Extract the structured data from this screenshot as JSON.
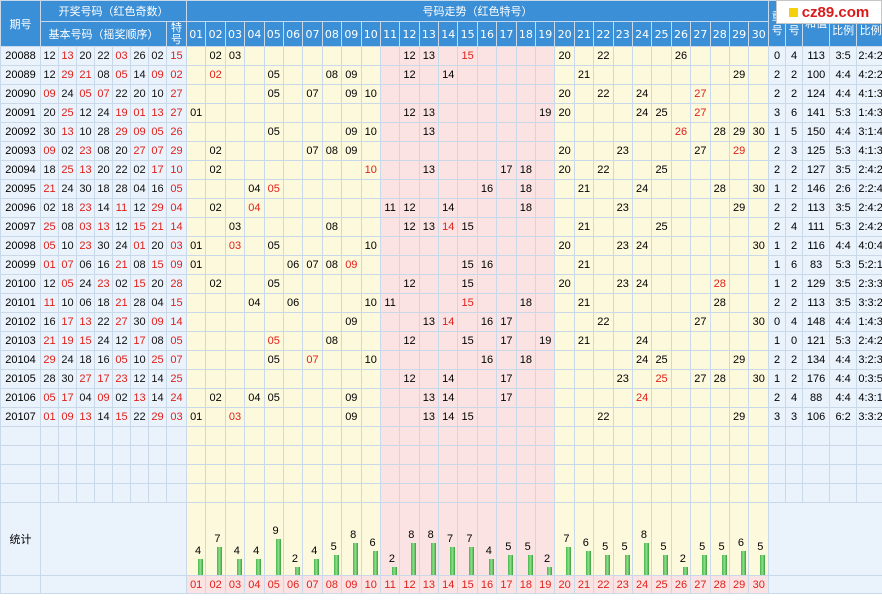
{
  "header": {
    "col_period": "期号",
    "group_draw": "开奖号码（红色奇数）",
    "basic_label": "基本号码（摇奖顺序）",
    "special_label": "特号",
    "group_trend": "号码走势（红色特号）",
    "col_repeat": "重号",
    "col_consecutive": "连号",
    "col_sum": "和值",
    "col_odd_even": "奇偶比例",
    "col_zone": "三区比例",
    "trend_numbers": [
      "01",
      "02",
      "03",
      "04",
      "05",
      "06",
      "07",
      "08",
      "09",
      "10",
      "11",
      "12",
      "13",
      "14",
      "15",
      "16",
      "17",
      "18",
      "19",
      "20",
      "21",
      "22",
      "23",
      "24",
      "25",
      "26",
      "27",
      "28",
      "29",
      "30"
    ]
  },
  "logo": {
    "text": "cz89.com"
  },
  "rows": [
    {
      "period": "20088",
      "nums": [
        "12",
        "13",
        "20",
        "22",
        "03",
        "26",
        "02"
      ],
      "special": "15",
      "trend": {
        "2": "02",
        "3": "03",
        "12": "12",
        "13": "13",
        "15": "15",
        "20": "20",
        "22": "22",
        "26": "26"
      },
      "repeat": "0",
      "consec": "4",
      "sum": "113",
      "oe": "3:5",
      "zone": "2:4:2"
    },
    {
      "period": "20089",
      "nums": [
        "12",
        "29",
        "21",
        "08",
        "05",
        "14",
        "09"
      ],
      "special": "02",
      "trend": {
        "2": "02",
        "5": "05",
        "8": "08",
        "9": "09",
        "12": "12",
        "14": "14",
        "21": "21",
        "29": "29"
      },
      "repeat": "2",
      "consec": "2",
      "sum": "100",
      "oe": "4:4",
      "zone": "4:2:2"
    },
    {
      "period": "20090",
      "nums": [
        "09",
        "24",
        "05",
        "07",
        "22",
        "20",
        "10"
      ],
      "special": "27",
      "trend": {
        "5": "05",
        "7": "07",
        "9": "09",
        "10": "10",
        "20": "20",
        "22": "22",
        "24": "24",
        "27": "27"
      },
      "repeat": "2",
      "consec": "2",
      "sum": "124",
      "oe": "4:4",
      "zone": "4:1:3"
    },
    {
      "period": "20091",
      "nums": [
        "20",
        "25",
        "12",
        "24",
        "19",
        "01",
        "13"
      ],
      "special": "27",
      "trend": {
        "1": "01",
        "12": "12",
        "13": "13",
        "19": "19",
        "20": "20",
        "24": "24",
        "25": "25",
        "27": "27"
      },
      "repeat": "3",
      "consec": "6",
      "sum": "141",
      "oe": "5:3",
      "zone": "1:4:3"
    },
    {
      "period": "20092",
      "nums": [
        "30",
        "13",
        "10",
        "28",
        "29",
        "09",
        "05"
      ],
      "special": "26",
      "trend": {
        "5": "05",
        "9": "09",
        "10": "10",
        "13": "13",
        "26": "26",
        "28": "28",
        "29": "29",
        "30": "30"
      },
      "repeat": "1",
      "consec": "5",
      "sum": "150",
      "oe": "4:4",
      "zone": "3:1:4"
    },
    {
      "period": "20093",
      "nums": [
        "09",
        "02",
        "23",
        "08",
        "20",
        "27",
        "07"
      ],
      "special": "29",
      "trend": {
        "2": "02",
        "7": "07",
        "8": "08",
        "9": "09",
        "20": "20",
        "23": "23",
        "27": "27",
        "29": "29"
      },
      "repeat": "2",
      "consec": "3",
      "sum": "125",
      "oe": "5:3",
      "zone": "4:1:3"
    },
    {
      "period": "20094",
      "nums": [
        "18",
        "25",
        "13",
        "20",
        "22",
        "02",
        "17"
      ],
      "special": "10",
      "trend": {
        "2": "02",
        "10": "10",
        "13": "13",
        "17": "17",
        "18": "18",
        "20": "20",
        "22": "22",
        "25": "25"
      },
      "repeat": "2",
      "consec": "2",
      "sum": "127",
      "oe": "3:5",
      "zone": "2:4:2"
    },
    {
      "period": "20095",
      "nums": [
        "21",
        "24",
        "30",
        "18",
        "28",
        "04",
        "16"
      ],
      "special": "05",
      "trend": {
        "4": "04",
        "5": "05",
        "16": "16",
        "18": "18",
        "21": "21",
        "24": "24",
        "28": "28",
        "30": "30"
      },
      "repeat": "1",
      "consec": "2",
      "sum": "146",
      "oe": "2:6",
      "zone": "2:2:4"
    },
    {
      "period": "20096",
      "nums": [
        "02",
        "18",
        "23",
        "14",
        "11",
        "12",
        "29"
      ],
      "special": "04",
      "trend": {
        "2": "02",
        "4": "04",
        "11": "11",
        "12": "12",
        "14": "14",
        "18": "18",
        "23": "23",
        "29": "29"
      },
      "repeat": "2",
      "consec": "2",
      "sum": "113",
      "oe": "3:5",
      "zone": "2:4:2"
    },
    {
      "period": "20097",
      "nums": [
        "25",
        "08",
        "03",
        "13",
        "12",
        "15",
        "21"
      ],
      "special": "14",
      "trend": {
        "3": "03",
        "8": "08",
        "12": "12",
        "13": "13",
        "14": "14",
        "15": "15",
        "21": "21",
        "25": "25"
      },
      "repeat": "2",
      "consec": "4",
      "sum": "111",
      "oe": "5:3",
      "zone": "2:4:2"
    },
    {
      "period": "20098",
      "nums": [
        "05",
        "10",
        "23",
        "30",
        "24",
        "01",
        "20"
      ],
      "special": "03",
      "trend": {
        "1": "01",
        "3": "03",
        "5": "05",
        "10": "10",
        "20": "20",
        "23": "23",
        "24": "24",
        "30": "30"
      },
      "repeat": "1",
      "consec": "2",
      "sum": "116",
      "oe": "4:4",
      "zone": "4:0:4"
    },
    {
      "period": "20099",
      "nums": [
        "01",
        "07",
        "06",
        "16",
        "21",
        "08",
        "15"
      ],
      "special": "09",
      "trend": {
        "1": "01",
        "6": "06",
        "7": "07",
        "8": "08",
        "9": "09",
        "15": "15",
        "16": "16",
        "21": "21"
      },
      "repeat": "1",
      "consec": "6",
      "sum": "83",
      "oe": "5:3",
      "zone": "5:2:1"
    },
    {
      "period": "20100",
      "nums": [
        "12",
        "05",
        "24",
        "23",
        "02",
        "15",
        "20"
      ],
      "special": "28",
      "trend": {
        "2": "02",
        "5": "05",
        "12": "12",
        "15": "15",
        "20": "20",
        "23": "23",
        "24": "24",
        "28": "28"
      },
      "repeat": "1",
      "consec": "2",
      "sum": "129",
      "oe": "3:5",
      "zone": "2:3:3"
    },
    {
      "period": "20101",
      "nums": [
        "11",
        "10",
        "06",
        "18",
        "21",
        "28",
        "04"
      ],
      "special": "15",
      "trend": {
        "4": "04",
        "6": "06",
        "10": "10",
        "11": "11",
        "15": "15",
        "18": "18",
        "21": "21",
        "28": "28"
      },
      "repeat": "2",
      "consec": "2",
      "sum": "113",
      "oe": "3:5",
      "zone": "3:3:2"
    },
    {
      "period": "20102",
      "nums": [
        "16",
        "17",
        "13",
        "22",
        "27",
        "30",
        "09"
      ],
      "special": "14",
      "trend": {
        "9": "09",
        "13": "13",
        "14": "14",
        "16": "16",
        "17": "17",
        "22": "22",
        "27": "27",
        "30": "30"
      },
      "repeat": "0",
      "consec": "4",
      "sum": "148",
      "oe": "4:4",
      "zone": "1:4:3"
    },
    {
      "period": "20103",
      "nums": [
        "21",
        "19",
        "15",
        "24",
        "12",
        "17",
        "08"
      ],
      "special": "05",
      "trend": {
        "5": "05",
        "8": "08",
        "12": "12",
        "15": "15",
        "17": "17",
        "19": "19",
        "21": "21",
        "24": "24"
      },
      "repeat": "1",
      "consec": "0",
      "sum": "121",
      "oe": "5:3",
      "zone": "2:4:2"
    },
    {
      "period": "20104",
      "nums": [
        "29",
        "24",
        "18",
        "16",
        "05",
        "10",
        "25"
      ],
      "special": "07",
      "trend": {
        "5": "05",
        "7": "07",
        "10": "10",
        "16": "16",
        "18": "18",
        "24": "24",
        "25": "25",
        "29": "29"
      },
      "repeat": "2",
      "consec": "2",
      "sum": "134",
      "oe": "4:4",
      "zone": "3:2:3"
    },
    {
      "period": "20105",
      "nums": [
        "28",
        "30",
        "27",
        "17",
        "23",
        "12",
        "14"
      ],
      "special": "25",
      "trend": {
        "12": "12",
        "14": "14",
        "17": "17",
        "23": "23",
        "25": "25",
        "27": "27",
        "28": "28",
        "30": "30"
      },
      "repeat": "1",
      "consec": "2",
      "sum": "176",
      "oe": "4:4",
      "zone": "0:3:5"
    },
    {
      "period": "20106",
      "nums": [
        "05",
        "17",
        "04",
        "09",
        "02",
        "13",
        "14"
      ],
      "special": "24",
      "trend": {
        "2": "02",
        "4": "04",
        "5": "05",
        "9": "09",
        "13": "13",
        "14": "14",
        "17": "17",
        "24": "24"
      },
      "repeat": "2",
      "consec": "4",
      "sum": "88",
      "oe": "4:4",
      "zone": "4:3:1"
    },
    {
      "period": "20107",
      "nums": [
        "01",
        "09",
        "13",
        "14",
        "15",
        "22",
        "29"
      ],
      "special": "03",
      "trend": {
        "1": "01",
        "3": "03",
        "9": "09",
        "13": "13",
        "14": "14",
        "15": "15",
        "22": "22",
        "29": "29"
      },
      "repeat": "3",
      "consec": "3",
      "sum": "106",
      "oe": "6:2",
      "zone": "3:3:2"
    }
  ],
  "stats": {
    "label": "统计",
    "counts": [
      4,
      7,
      4,
      4,
      9,
      2,
      4,
      5,
      8,
      6,
      2,
      8,
      8,
      7,
      7,
      4,
      5,
      5,
      2,
      7,
      6,
      5,
      5,
      8,
      5,
      2,
      5,
      5,
      6,
      5
    ]
  }
}
